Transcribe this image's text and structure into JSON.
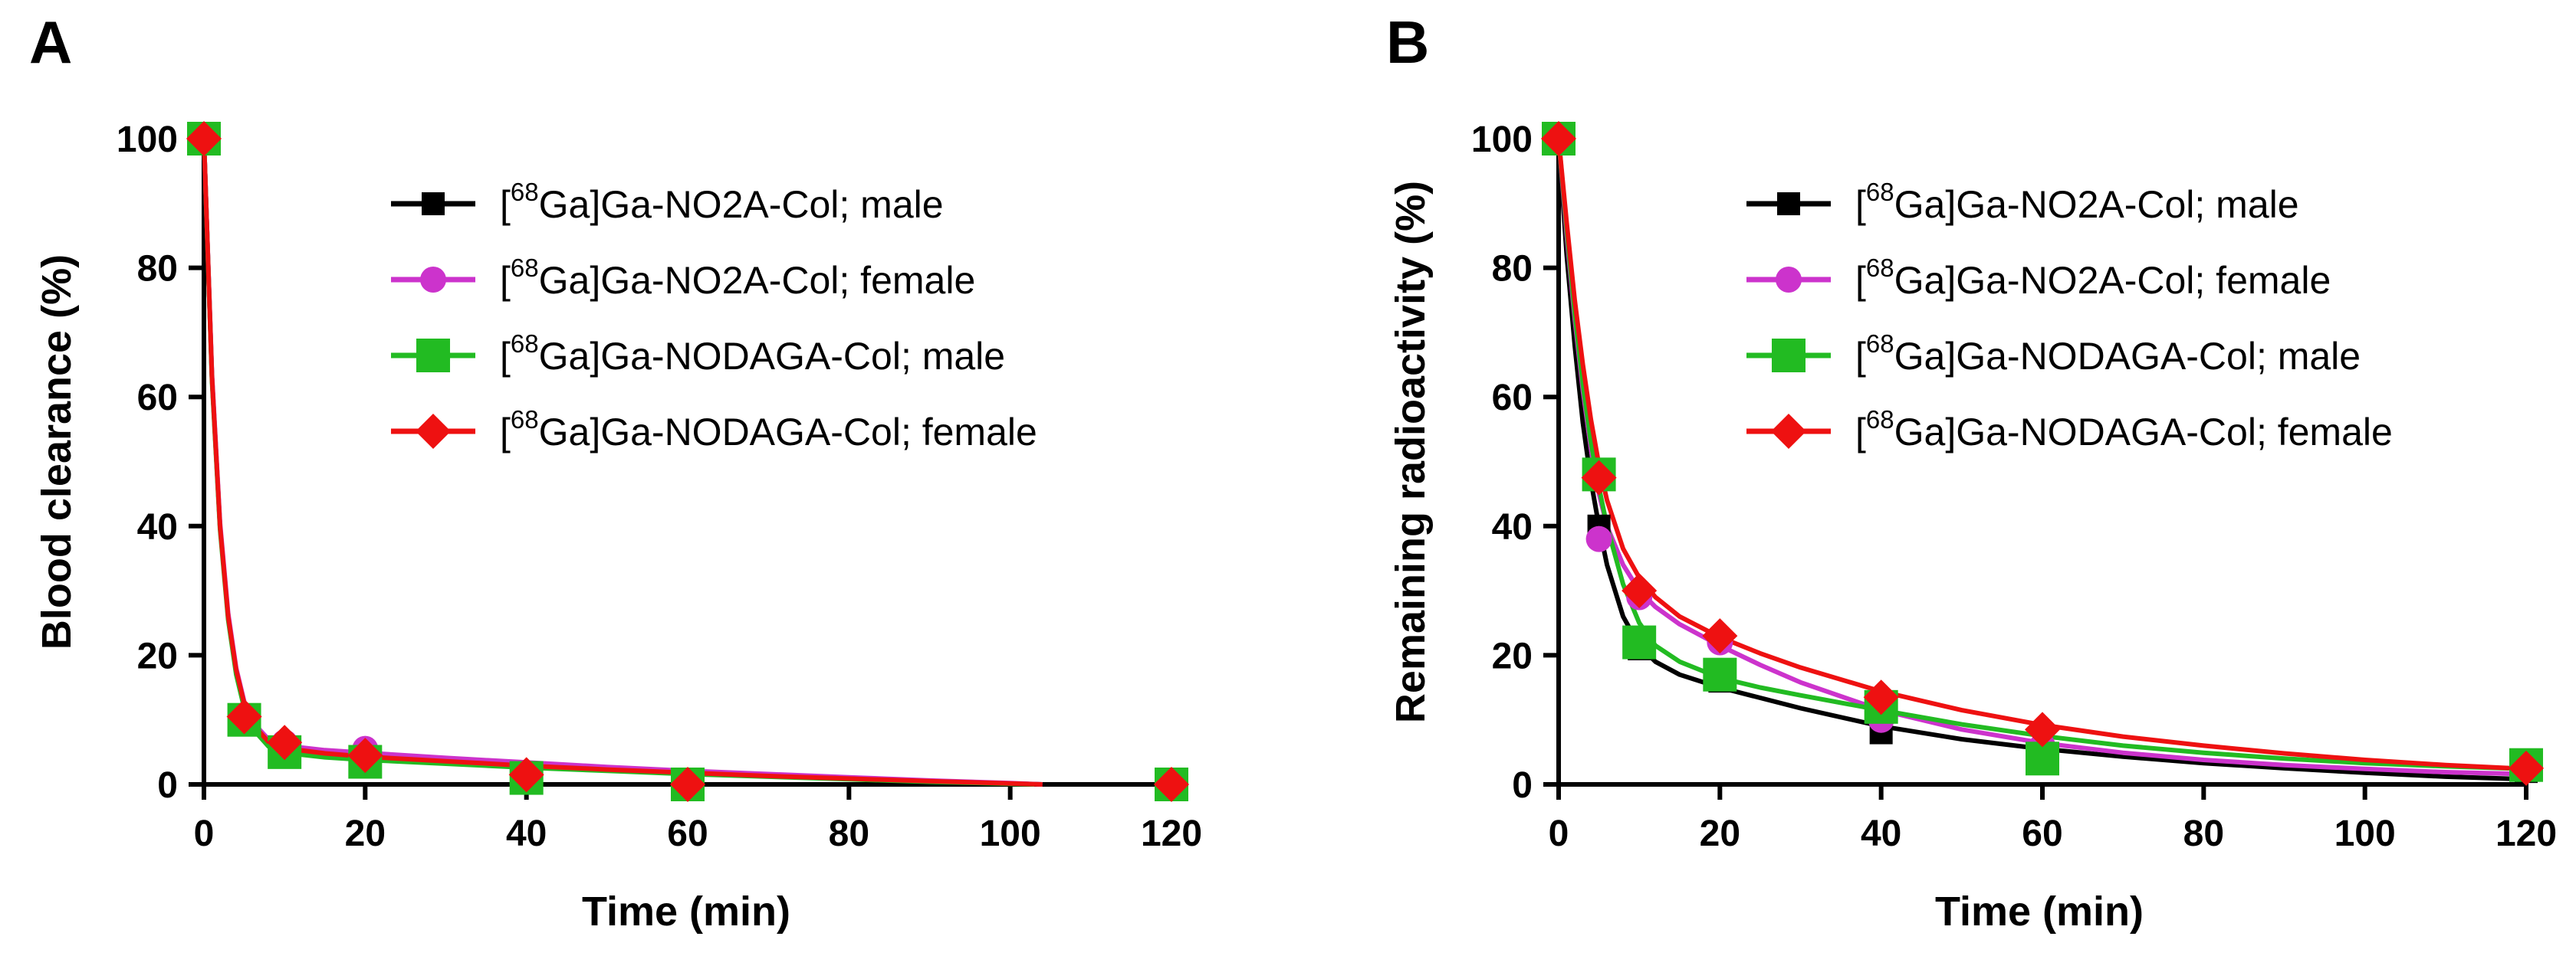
{
  "chart_data": [
    {
      "panel": "A",
      "type": "line",
      "xlabel": "Time (min)",
      "ylabel": "Blood clearance (%)",
      "xlim": [
        0,
        120
      ],
      "ylim": [
        0,
        100
      ],
      "xticks": [
        0,
        20,
        40,
        60,
        80,
        100,
        120
      ],
      "yticks": [
        0,
        20,
        40,
        60,
        80,
        100
      ],
      "grid": false,
      "legend_position": "top-right",
      "series": [
        {
          "name": "[68Ga]Ga-NO2A-Col; male",
          "label_pre": "[",
          "label_sup": "68",
          "label_post": "Ga]Ga-NO2A-Col; male",
          "color": "#000000",
          "marker": "square",
          "x": [
            0,
            5,
            10,
            20,
            40,
            60,
            120
          ],
          "y": [
            100,
            9.5,
            5.5,
            4.5,
            1,
            0.5,
            0
          ],
          "fit": [
            [
              0,
              100
            ],
            [
              1,
              63
            ],
            [
              2,
              40
            ],
            [
              3,
              26
            ],
            [
              4,
              17.5
            ],
            [
              5,
              12.3
            ],
            [
              6,
              9.2
            ],
            [
              8,
              6.5
            ],
            [
              10,
              5.5
            ],
            [
              15,
              4.8
            ],
            [
              20,
              4.4
            ],
            [
              30,
              3.7
            ],
            [
              40,
              3.0
            ],
            [
              50,
              2.4
            ],
            [
              60,
              1.9
            ],
            [
              70,
              1.4
            ],
            [
              80,
              0.9
            ],
            [
              90,
              0.5
            ],
            [
              100,
              0.15
            ],
            [
              104,
              0
            ]
          ]
        },
        {
          "name": "[68Ga]Ga-NO2A-Col; female",
          "label_pre": "[",
          "label_sup": "68",
          "label_post": "Ga]Ga-NO2A-Col; female",
          "color": "#cc33cc",
          "marker": "circle",
          "x": [
            0,
            5,
            10,
            20,
            40,
            60,
            120
          ],
          "y": [
            100,
            10.5,
            6.5,
            5.5,
            1.5,
            0.5,
            0
          ],
          "fit": [
            [
              0,
              100
            ],
            [
              1,
              63.5
            ],
            [
              2,
              40.5
            ],
            [
              3,
              26.5
            ],
            [
              4,
              18
            ],
            [
              5,
              12.8
            ],
            [
              6,
              9.7
            ],
            [
              8,
              7.0
            ],
            [
              10,
              6.0
            ],
            [
              15,
              5.3
            ],
            [
              20,
              4.9
            ],
            [
              30,
              4.1
            ],
            [
              40,
              3.4
            ],
            [
              50,
              2.7
            ],
            [
              60,
              2.1
            ],
            [
              70,
              1.6
            ],
            [
              80,
              1.1
            ],
            [
              90,
              0.6
            ],
            [
              100,
              0.2
            ],
            [
              104,
              0
            ]
          ]
        },
        {
          "name": "[68Ga]Ga-NODAGA-Col; male",
          "label_pre": "[",
          "label_sup": "68",
          "label_post": "Ga]Ga-NODAGA-Col; male",
          "color": "#22bb22",
          "marker": "square-large",
          "x": [
            0,
            5,
            10,
            20,
            40,
            60,
            120
          ],
          "y": [
            100,
            10,
            5,
            3.5,
            1,
            0,
            0
          ],
          "fit": [
            [
              0,
              100
            ],
            [
              1,
              62.5
            ],
            [
              2,
              39.5
            ],
            [
              3,
              25.5
            ],
            [
              4,
              17
            ],
            [
              5,
              11.8
            ],
            [
              6,
              8.7
            ],
            [
              8,
              5.9
            ],
            [
              10,
              4.9
            ],
            [
              15,
              4.2
            ],
            [
              20,
              3.8
            ],
            [
              30,
              3.2
            ],
            [
              40,
              2.6
            ],
            [
              50,
              2.1
            ],
            [
              60,
              1.6
            ],
            [
              70,
              1.2
            ],
            [
              80,
              0.8
            ],
            [
              90,
              0.4
            ],
            [
              100,
              0.1
            ],
            [
              103,
              0
            ]
          ]
        },
        {
          "name": "[68Ga]Ga-NODAGA-Col; female",
          "label_pre": "[",
          "label_sup": "68",
          "label_post": "Ga]Ga-NODAGA-Col; female",
          "color": "#ee1111",
          "marker": "diamond",
          "x": [
            0,
            5,
            10,
            20,
            40,
            60,
            120
          ],
          "y": [
            100,
            10.5,
            6.5,
            4.5,
            1.5,
            0,
            0
          ],
          "fit": [
            [
              0,
              100
            ],
            [
              1,
              63
            ],
            [
              2,
              40
            ],
            [
              3,
              26
            ],
            [
              4,
              17.7
            ],
            [
              5,
              12.5
            ],
            [
              6,
              9.4
            ],
            [
              8,
              6.6
            ],
            [
              10,
              5.6
            ],
            [
              15,
              4.8
            ],
            [
              20,
              4.3
            ],
            [
              30,
              3.6
            ],
            [
              40,
              2.9
            ],
            [
              50,
              2.3
            ],
            [
              60,
              1.8
            ],
            [
              70,
              1.3
            ],
            [
              80,
              0.9
            ],
            [
              90,
              0.5
            ],
            [
              100,
              0.15
            ],
            [
              104,
              0
            ]
          ]
        }
      ]
    },
    {
      "panel": "B",
      "type": "line",
      "xlabel": "Time (min)",
      "ylabel": "Remaining radioactivity (%)",
      "xlim": [
        0,
        120
      ],
      "ylim": [
        0,
        100
      ],
      "xticks": [
        0,
        20,
        40,
        60,
        80,
        100,
        120
      ],
      "yticks": [
        0,
        20,
        40,
        60,
        80,
        100
      ],
      "grid": false,
      "legend_position": "top-right",
      "series": [
        {
          "name": "[68Ga]Ga-NO2A-Col; male",
          "label_pre": "[",
          "label_sup": "68",
          "label_post": "Ga]Ga-NO2A-Col; male",
          "color": "#000000",
          "marker": "square",
          "x": [
            0,
            5,
            10,
            20,
            40,
            60,
            120
          ],
          "y": [
            100,
            40,
            21,
            16,
            8,
            5,
            2
          ],
          "fit": [
            [
              0,
              100
            ],
            [
              1,
              82
            ],
            [
              2,
              68
            ],
            [
              3,
              56
            ],
            [
              4,
              47
            ],
            [
              5,
              40
            ],
            [
              6,
              34
            ],
            [
              8,
              26
            ],
            [
              10,
              21.5
            ],
            [
              12,
              19
            ],
            [
              15,
              17
            ],
            [
              20,
              15
            ],
            [
              25,
              13.4
            ],
            [
              30,
              11.8
            ],
            [
              40,
              9
            ],
            [
              50,
              7
            ],
            [
              60,
              5.5
            ],
            [
              70,
              4.3
            ],
            [
              80,
              3.3
            ],
            [
              90,
              2.5
            ],
            [
              100,
              1.8
            ],
            [
              110,
              1.2
            ],
            [
              120,
              0.8
            ]
          ]
        },
        {
          "name": "[68Ga]Ga-NO2A-Col; female",
          "label_pre": "[",
          "label_sup": "68",
          "label_post": "Ga]Ga-NO2A-Col; female",
          "color": "#cc33cc",
          "marker": "circle",
          "x": [
            0,
            5,
            10,
            20,
            40,
            60,
            120
          ],
          "y": [
            100,
            38,
            29,
            22,
            10,
            6,
            3
          ],
          "fit": [
            [
              0,
              100
            ],
            [
              1,
              85
            ],
            [
              2,
              72
            ],
            [
              3,
              61
            ],
            [
              4,
              52
            ],
            [
              5,
              45
            ],
            [
              6,
              40
            ],
            [
              8,
              34
            ],
            [
              10,
              30
            ],
            [
              12,
              27.5
            ],
            [
              15,
              24.8
            ],
            [
              20,
              21.5
            ],
            [
              25,
              18.5
            ],
            [
              30,
              15.8
            ],
            [
              40,
              11.5
            ],
            [
              50,
              8.5
            ],
            [
              60,
              6.4
            ],
            [
              70,
              4.9
            ],
            [
              80,
              3.8
            ],
            [
              90,
              3.0
            ],
            [
              100,
              2.4
            ],
            [
              110,
              1.9
            ],
            [
              120,
              1.6
            ]
          ]
        },
        {
          "name": "[68Ga]Ga-NODAGA-Col; male",
          "label_pre": "[",
          "label_sup": "68",
          "label_post": "Ga]Ga-NODAGA-Col; male",
          "color": "#22bb22",
          "marker": "square-large",
          "x": [
            0,
            5,
            10,
            20,
            40,
            60,
            120
          ],
          "y": [
            100,
            48,
            22,
            17,
            12,
            4,
            3
          ],
          "fit": [
            [
              0,
              100
            ],
            [
              1,
              86
            ],
            [
              2,
              73
            ],
            [
              3,
              62
            ],
            [
              4,
              53
            ],
            [
              5,
              46
            ],
            [
              6,
              40
            ],
            [
              8,
              31
            ],
            [
              10,
              25
            ],
            [
              12,
              21.5
            ],
            [
              15,
              19
            ],
            [
              20,
              16.5
            ],
            [
              25,
              15
            ],
            [
              30,
              13.8
            ],
            [
              40,
              11.5
            ],
            [
              50,
              9.3
            ],
            [
              60,
              7.5
            ],
            [
              70,
              6
            ],
            [
              80,
              4.9
            ],
            [
              90,
              4
            ],
            [
              100,
              3.3
            ],
            [
              110,
              2.8
            ],
            [
              120,
              2.4
            ]
          ]
        },
        {
          "name": "[68Ga]Ga-NODAGA-Col; female",
          "label_pre": "[",
          "label_sup": "68",
          "label_post": "Ga]Ga-NODAGA-Col; female",
          "color": "#ee1111",
          "marker": "diamond",
          "x": [
            0,
            5,
            10,
            20,
            40,
            60,
            120
          ],
          "y": [
            100,
            47.5,
            30,
            23,
            13.5,
            8.5,
            2.5
          ],
          "fit": [
            [
              0,
              100
            ],
            [
              1,
              87
            ],
            [
              2,
              75
            ],
            [
              3,
              65
            ],
            [
              4,
              56.5
            ],
            [
              5,
              49.5
            ],
            [
              6,
              44
            ],
            [
              8,
              36.5
            ],
            [
              10,
              32
            ],
            [
              12,
              29
            ],
            [
              15,
              26
            ],
            [
              20,
              22.8
            ],
            [
              25,
              20.3
            ],
            [
              30,
              18.1
            ],
            [
              40,
              14.4
            ],
            [
              50,
              11.5
            ],
            [
              60,
              9.2
            ],
            [
              70,
              7.4
            ],
            [
              80,
              6
            ],
            [
              90,
              4.8
            ],
            [
              100,
              3.8
            ],
            [
              110,
              3
            ],
            [
              120,
              2.4
            ]
          ]
        }
      ]
    }
  ]
}
